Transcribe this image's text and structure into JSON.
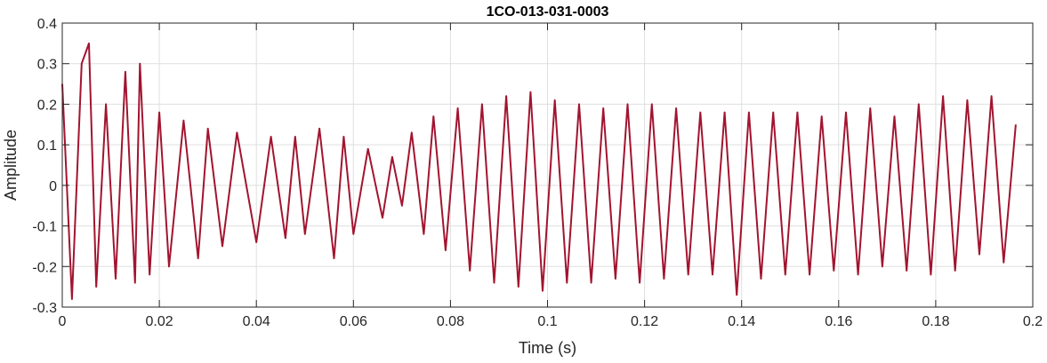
{
  "chart_data": {
    "type": "line",
    "title": "1CO-013-031-0003",
    "xlabel": "Time (s)",
    "ylabel": "Amplitude",
    "xlim": [
      0,
      0.2
    ],
    "ylim": [
      -0.3,
      0.4
    ],
    "grid": true,
    "x_ticks": [
      0,
      0.02,
      0.04,
      0.06,
      0.08,
      0.1,
      0.12,
      0.14,
      0.16,
      0.18,
      0.2
    ],
    "x_tick_labels": [
      "0",
      "0.02",
      "0.04",
      "0.06",
      "0.08",
      "0.1",
      "0.12",
      "0.14",
      "0.16",
      "0.18",
      "0.2"
    ],
    "y_ticks": [
      -0.3,
      -0.2,
      -0.1,
      0,
      0.1,
      0.2,
      0.3,
      0.4
    ],
    "y_tick_labels": [
      "-0.3",
      "-0.2",
      "-0.1",
      "0",
      "0.1",
      "0.2",
      "0.3",
      "0.4"
    ],
    "series": [
      {
        "color": "#A2142F",
        "x": [
          0,
          0.002,
          0.004,
          0.0055,
          0.007,
          0.009,
          0.011,
          0.013,
          0.015,
          0.016,
          0.018,
          0.02,
          0.022,
          0.025,
          0.028,
          0.03,
          0.033,
          0.036,
          0.04,
          0.043,
          0.046,
          0.048,
          0.05,
          0.053,
          0.056,
          0.058,
          0.06,
          0.063,
          0.066,
          0.068,
          0.07,
          0.072,
          0.0745,
          0.0765,
          0.079,
          0.0815,
          0.084,
          0.0865,
          0.089,
          0.0915,
          0.094,
          0.0965,
          0.099,
          0.1015,
          0.104,
          0.1065,
          0.109,
          0.1115,
          0.114,
          0.1165,
          0.119,
          0.1215,
          0.124,
          0.1265,
          0.129,
          0.1315,
          0.134,
          0.1365,
          0.139,
          0.1415,
          0.144,
          0.1465,
          0.149,
          0.1515,
          0.154,
          0.1565,
          0.159,
          0.1615,
          0.164,
          0.1665,
          0.169,
          0.1715,
          0.174,
          0.1765,
          0.179,
          0.1815,
          0.184,
          0.1865,
          0.189,
          0.1915,
          0.194,
          0.1965
        ],
        "y": [
          0.25,
          -0.28,
          0.3,
          0.35,
          -0.25,
          0.2,
          -0.23,
          0.28,
          -0.24,
          0.3,
          -0.22,
          0.18,
          -0.2,
          0.16,
          -0.18,
          0.14,
          -0.15,
          0.13,
          -0.14,
          0.12,
          -0.13,
          0.12,
          -0.12,
          0.14,
          -0.18,
          0.12,
          -0.12,
          0.09,
          -0.08,
          0.07,
          -0.05,
          0.13,
          -0.12,
          0.17,
          -0.16,
          0.19,
          -0.21,
          0.2,
          -0.24,
          0.22,
          -0.25,
          0.23,
          -0.26,
          0.21,
          -0.24,
          0.2,
          -0.24,
          0.19,
          -0.23,
          0.2,
          -0.24,
          0.2,
          -0.23,
          0.19,
          -0.22,
          0.18,
          -0.22,
          0.18,
          -0.27,
          0.18,
          -0.23,
          0.18,
          -0.22,
          0.18,
          -0.22,
          0.17,
          -0.21,
          0.18,
          -0.22,
          0.19,
          -0.2,
          0.17,
          -0.21,
          0.2,
          -0.22,
          0.22,
          -0.21,
          0.21,
          -0.17,
          0.22,
          -0.19,
          0.15
        ]
      }
    ]
  }
}
